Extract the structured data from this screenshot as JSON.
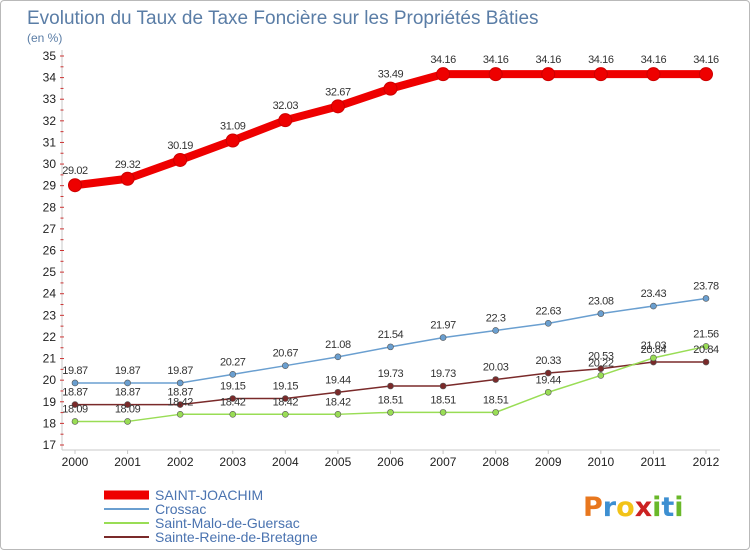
{
  "chart_data": {
    "type": "line",
    "title": "Evolution du Taux de Taxe Foncière sur les Propriétés Bâties",
    "ylabel": "(en %)",
    "xlabel": "",
    "categories": [
      "2000",
      "2001",
      "2002",
      "2003",
      "2004",
      "2005",
      "2006",
      "2007",
      "2008",
      "2009",
      "2010",
      "2011",
      "2012"
    ],
    "ylim": [
      17,
      35
    ],
    "yticks": [
      "17",
      "18",
      "19",
      "20",
      "21",
      "22",
      "23",
      "24",
      "25",
      "26",
      "27",
      "28",
      "29",
      "30",
      "31",
      "32",
      "33",
      "34",
      "35"
    ],
    "grid": false,
    "legend_position": "bottom-left",
    "series": [
      {
        "name": "SAINT-JOACHIM",
        "color": "#ee0000",
        "values": [
          29.02,
          29.32,
          30.19,
          31.09,
          32.03,
          32.67,
          33.49,
          34.16,
          34.16,
          34.16,
          34.16,
          34.16,
          34.16
        ],
        "labels": [
          "29.02",
          "29.32",
          "30.19",
          "31.09",
          "32.03",
          "32.67",
          "33.49",
          "34.16",
          "34.16",
          "34.16",
          "34.16",
          "34.16",
          "34.16"
        ]
      },
      {
        "name": "Crossac",
        "color": "#6a9fd0",
        "values": [
          19.87,
          19.87,
          19.87,
          20.27,
          20.67,
          21.08,
          21.54,
          21.97,
          22.3,
          22.63,
          23.08,
          23.43,
          23.78
        ],
        "labels": [
          "19.87",
          "19.87",
          "19.87",
          "20.27",
          "20.67",
          "21.08",
          "21.54",
          "21.97",
          "22.3",
          "22.63",
          "23.08",
          "23.43",
          "23.78"
        ]
      },
      {
        "name": "Saint-Malo-de-Guersac",
        "color": "#99dd55",
        "values": [
          18.09,
          18.09,
          18.42,
          18.42,
          18.42,
          18.42,
          18.51,
          18.51,
          18.51,
          19.44,
          20.22,
          21.03,
          21.56
        ],
        "labels": [
          "18.09",
          "18.09",
          "18.42",
          "18.42",
          "18.42",
          "18.42",
          "18.51",
          "18.51",
          "18.51",
          "19.44",
          "20.22",
          "21.03",
          "21.56"
        ]
      },
      {
        "name": "Sainte-Reine-de-Bretagne",
        "color": "#7a2a2a",
        "values": [
          18.87,
          18.87,
          18.87,
          19.15,
          19.15,
          19.44,
          19.73,
          19.73,
          20.03,
          20.33,
          20.53,
          20.84,
          20.84
        ],
        "labels": [
          "18.87",
          "18.87",
          "18.87",
          "19.15",
          "19.15",
          "19.44",
          "19.73",
          "19.73",
          "20.03",
          "20.33",
          "20.53",
          "20.84",
          "20.84"
        ]
      }
    ]
  },
  "logo": {
    "letters": [
      "P",
      "r",
      "o",
      "x",
      "i",
      "t",
      "i"
    ],
    "colors": [
      "#e8771e",
      "#3d8fd1",
      "#f2c318",
      "#cc2222",
      "#6ab82a",
      "#3d8fd1",
      "#6ab82a"
    ]
  }
}
